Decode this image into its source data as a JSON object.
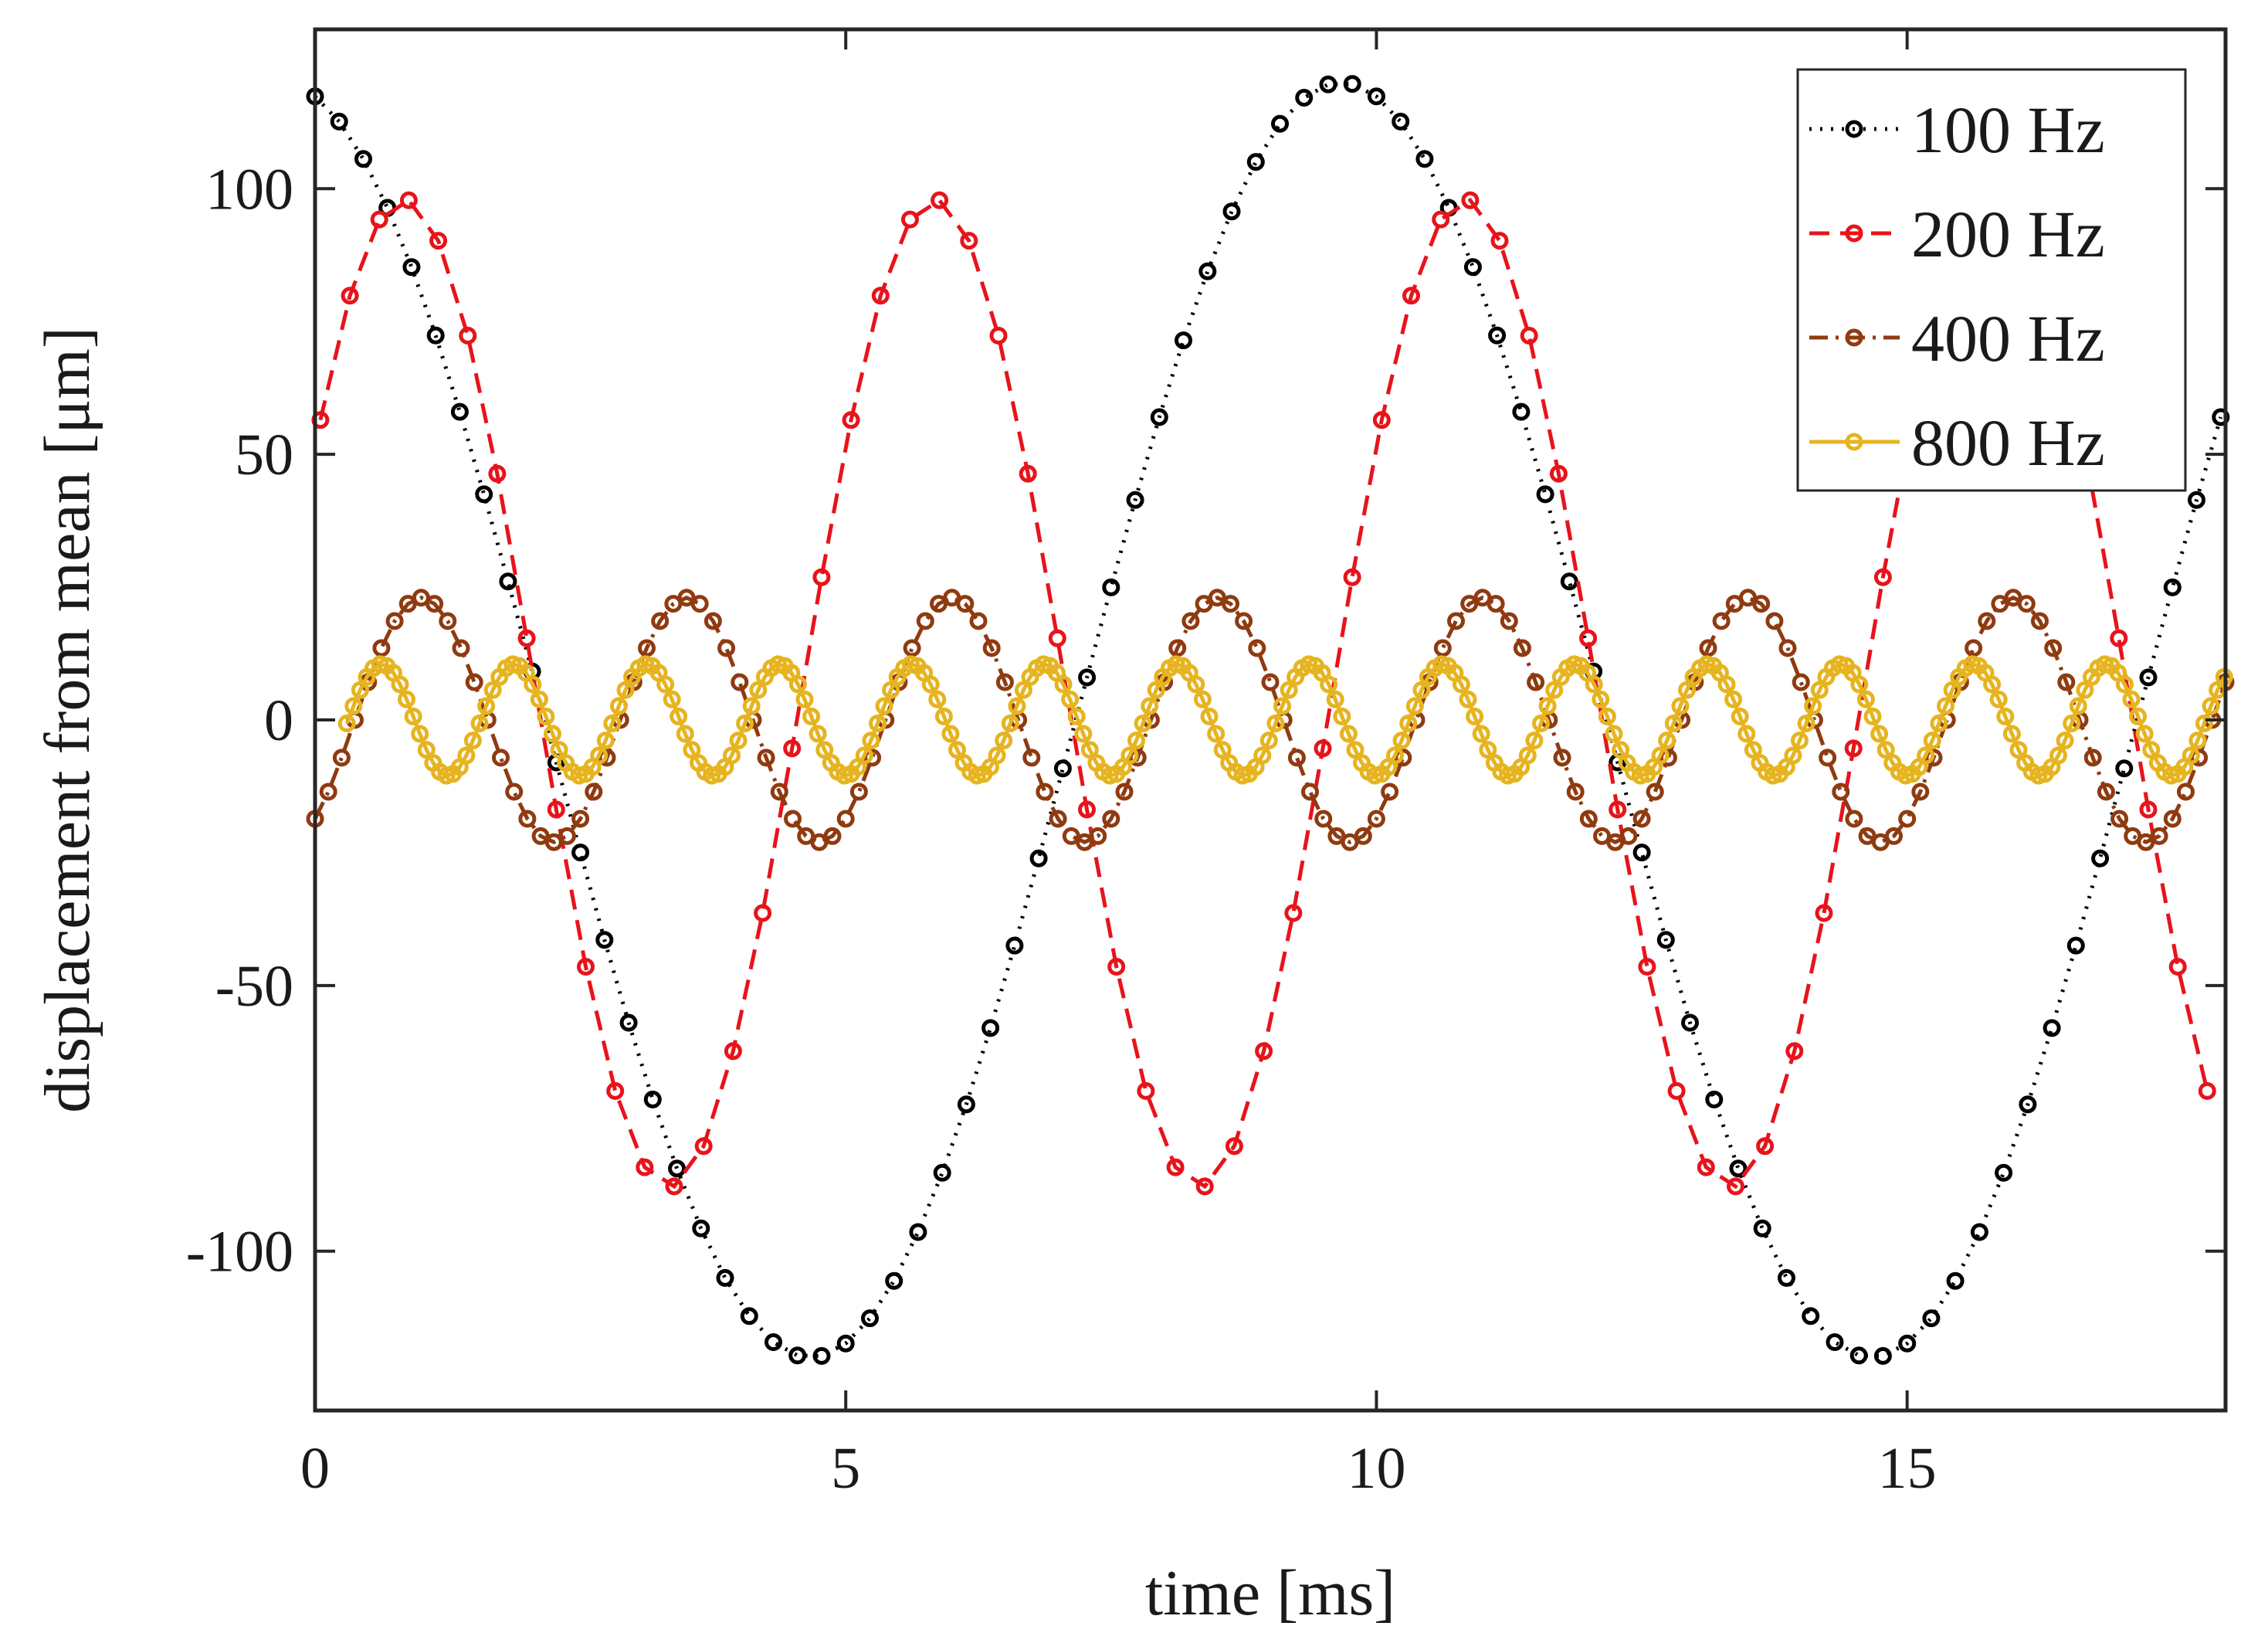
{
  "chart_data": {
    "type": "line",
    "title": "",
    "xlabel": "time [ms]",
    "ylabel": "displacement from mean [μm]",
    "xlim": [
      0,
      18
    ],
    "ylim": [
      -130,
      130
    ],
    "xticks": [
      0,
      5,
      10,
      15
    ],
    "yticks": [
      -100,
      -50,
      0,
      50,
      100
    ],
    "xtick_labels": [
      "0",
      "5",
      "10",
      "15"
    ],
    "ytick_labels": [
      "-100",
      "-50",
      "0",
      "50",
      "100"
    ],
    "grid": false,
    "legend_position": "top-right",
    "series": [
      {
        "name": "100 Hz",
        "color": "#000000",
        "line_style": "dotted",
        "marker": "circle",
        "frequency_hz": 100,
        "amplitude": 120,
        "phase_deg": 12,
        "t_start": 0,
        "t_end": 18,
        "samples_per_period": 44
      },
      {
        "name": "200 Hz",
        "color": "#e8131b",
        "line_style": "dashed",
        "marker": "circle",
        "frequency_hz": 200,
        "amplitude": 93,
        "offset": 5,
        "phase_deg": -60,
        "t_start": 0.05,
        "t_end": 18,
        "samples_per_period": 18
      },
      {
        "name": "400 Hz",
        "color": "#8f3a10",
        "line_style": "dashdot",
        "marker": "circle",
        "frequency_hz": 400,
        "amplitude": 23,
        "phase_deg": -144,
        "t_start": 0,
        "t_end": 18,
        "samples_per_period": 20
      },
      {
        "name": "800 Hz",
        "color": "#e6b420",
        "line_style": "solid",
        "marker": "circle",
        "frequency_hz": 800,
        "amplitude": 10.5,
        "phase_deg": -180,
        "t_start": 0.3,
        "t_end": 18,
        "samples_per_period": 20
      }
    ]
  }
}
